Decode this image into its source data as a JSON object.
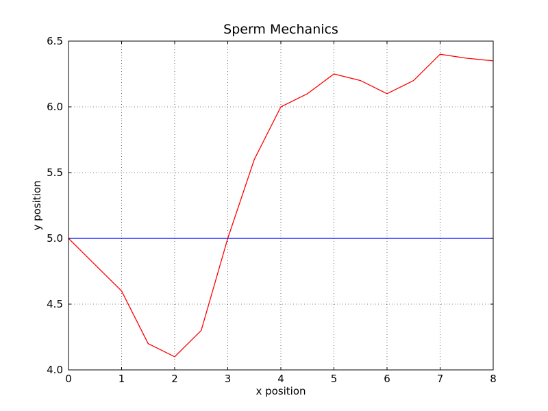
{
  "chart_data": {
    "type": "line",
    "title": "Sperm Mechanics",
    "xlabel": "x position",
    "ylabel": "y position",
    "xlim": [
      0,
      8
    ],
    "ylim": [
      4.0,
      6.5
    ],
    "xticks": [
      0,
      1,
      2,
      3,
      4,
      5,
      6,
      7,
      8
    ],
    "xtick_labels": [
      "0",
      "1",
      "2",
      "3",
      "4",
      "5",
      "6",
      "7",
      "8"
    ],
    "yticks": [
      4.0,
      4.5,
      5.0,
      5.5,
      6.0,
      6.5
    ],
    "ytick_labels": [
      "4.0",
      "4.5",
      "5.0",
      "5.5",
      "6.0",
      "6.5"
    ],
    "grid": true,
    "series": [
      {
        "color": "#ff0000",
        "x": [
          0,
          0.5,
          1,
          1.5,
          2,
          2.5,
          3,
          3.5,
          4,
          4.5,
          5,
          5.5,
          6,
          6.5,
          7,
          7.5,
          8
        ],
        "y": [
          5.0,
          4.8,
          4.6,
          4.2,
          4.1,
          4.3,
          5.0,
          5.6,
          6.0,
          6.1,
          6.25,
          6.2,
          6.1,
          6.2,
          6.4,
          6.37,
          6.35
        ]
      },
      {
        "color": "#0000ff",
        "x": [
          0,
          8
        ],
        "y": [
          5.0,
          5.0
        ]
      }
    ]
  }
}
